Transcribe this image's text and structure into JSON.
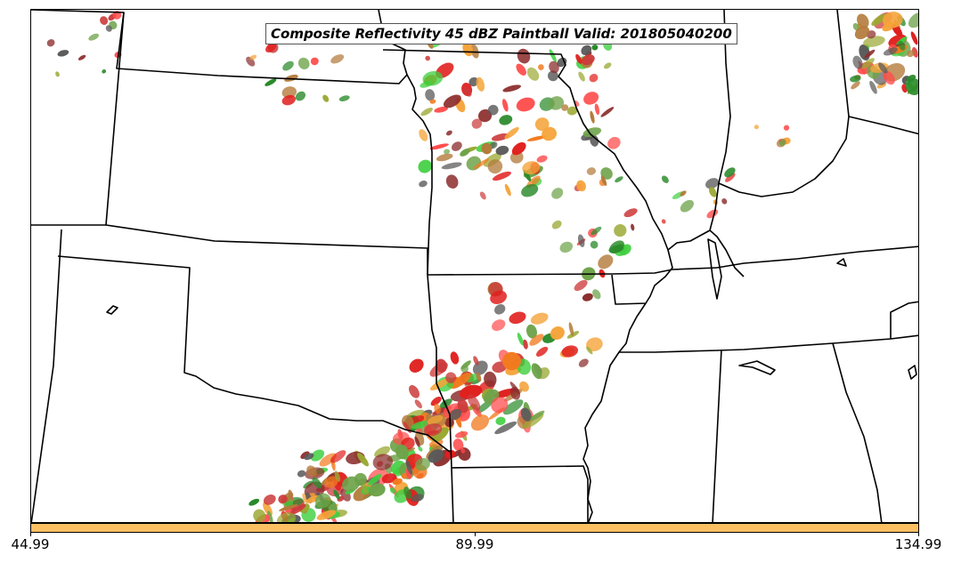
{
  "title": "Composite Reflectivity 45 dBZ Paintball Valid: 201805040200",
  "colorbar": {
    "color": "#fcc063",
    "tick_labels": [
      "44.99",
      "89.99",
      "134.99"
    ]
  },
  "colors": {
    "border": "#000000",
    "paintball": [
      "#cc3b3b",
      "#e0201e",
      "#f27a1e",
      "#3fcf3f",
      "#2a8a2a",
      "#9aa832",
      "#5a5a5a",
      "#8c2d2d",
      "#f5a43a",
      "#b37a3a",
      "#ff4d4d",
      "#6ea34a"
    ]
  }
}
